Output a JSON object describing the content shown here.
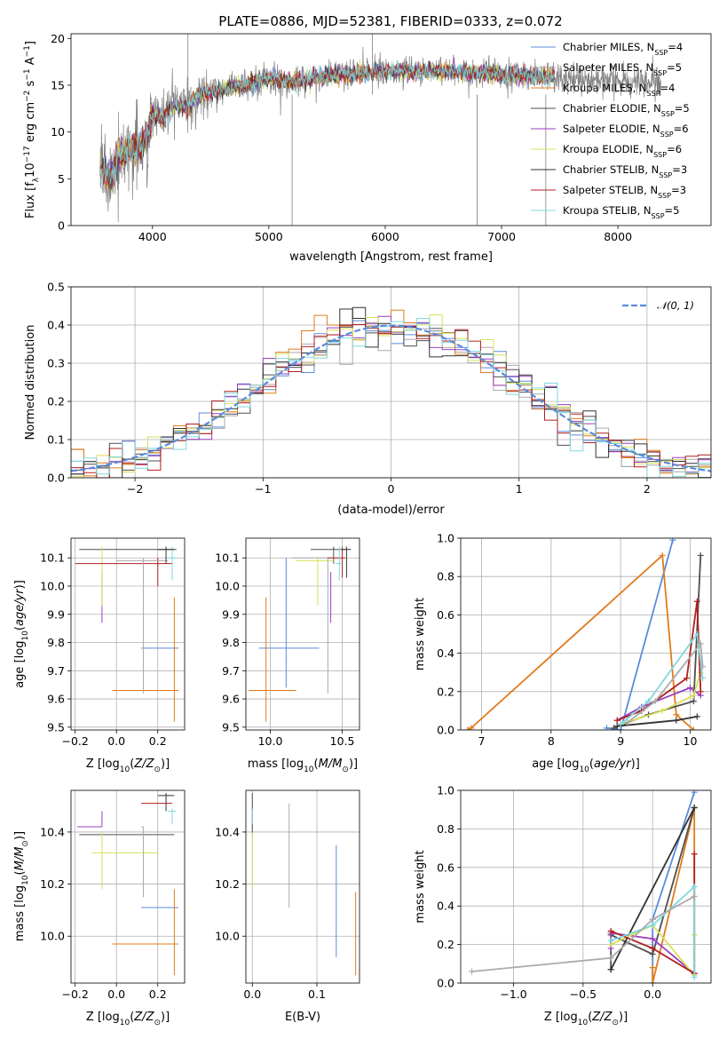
{
  "figure": {
    "title": "PLATE=0886, MJD=52381, FIBERID=0333, z=0.072"
  },
  "models": [
    {
      "name": "Chabrier MILES, N",
      "sub": "SSP",
      "tail": "=4",
      "color": "#5b8bdb"
    },
    {
      "name": "Salpeter MILES, N",
      "sub": "SSP",
      "tail": "=5",
      "color": "#aaaaaa"
    },
    {
      "name": "Kroupa MILES, N",
      "sub": "SSP",
      "tail": "=4",
      "color": "#e07b1c"
    },
    {
      "name": "Chabrier ELODIE, N",
      "sub": "SSP",
      "tail": "=5",
      "color": "#4f4f4f"
    },
    {
      "name": "Salpeter ELODIE, N",
      "sub": "SSP",
      "tail": "=6",
      "color": "#9c3fbf"
    },
    {
      "name": "Kroupa ELODIE, N",
      "sub": "SSP",
      "tail": "=6",
      "color": "#d7e05a"
    },
    {
      "name": "Chabrier STELIB, N",
      "sub": "SSP",
      "tail": "=3",
      "color": "#333333"
    },
    {
      "name": "Salpeter STELIB, N",
      "sub": "SSP",
      "tail": "=3",
      "color": "#b21e1e"
    },
    {
      "name": "Kroupa STELIB, N",
      "sub": "SSP",
      "tail": "=5",
      "color": "#7fd8df"
    }
  ],
  "chart_data": [
    {
      "type": "line",
      "id": "spectrum",
      "xlabel": "wavelength [Angstrom, rest frame]",
      "ylabel_parts": [
        "Flux [f",
        "λ",
        "10",
        "−17",
        " erg cm",
        "−2",
        " s",
        "−1",
        " A",
        "−1",
        "]"
      ],
      "xlim": [
        3300,
        8800
      ],
      "ylim": [
        0,
        20.5
      ],
      "xticks": [
        4000,
        5000,
        6000,
        7000,
        8000
      ],
      "yticks": [
        0,
        5,
        10,
        15,
        20
      ],
      "continuum": [
        [
          3550,
          6.0
        ],
        [
          3650,
          5.0
        ],
        [
          3700,
          7.5
        ],
        [
          3800,
          8.0
        ],
        [
          3900,
          8.5
        ],
        [
          3950,
          9.0
        ],
        [
          4000,
          12.0
        ],
        [
          4100,
          11.5
        ],
        [
          4200,
          13.0
        ],
        [
          4300,
          12.5
        ],
        [
          4400,
          14.0
        ],
        [
          4600,
          14.5
        ],
        [
          4800,
          15.0
        ],
        [
          5000,
          15.8
        ],
        [
          5200,
          15.3
        ],
        [
          5500,
          16.0
        ],
        [
          5800,
          16.3
        ],
        [
          6000,
          16.5
        ],
        [
          6500,
          16.5
        ],
        [
          7000,
          16.2
        ],
        [
          7300,
          16.0
        ],
        [
          7450,
          16.0
        ]
      ],
      "lines_drawn": "noisy spectra of all models"
    },
    {
      "type": "histogram",
      "id": "residuals",
      "xlabel": "(data-model)/error",
      "ylabel": "Normed distribution",
      "xlim": [
        -2.5,
        2.5
      ],
      "ylim": [
        0,
        0.5
      ],
      "xticks": [
        -2,
        -1,
        0,
        1,
        2
      ],
      "yticks": [
        0.0,
        0.1,
        0.2,
        0.3,
        0.4,
        0.5
      ],
      "legend": "𝒩(0, 1)",
      "bin_width": 0.1
    },
    {
      "type": "errorbar",
      "id": "age-vs-z",
      "xlabel": "Z [log10(Z/Z⊙)]",
      "ylabel": "age  [log10(age/yr)]",
      "xlim": [
        -0.22,
        0.33
      ],
      "ylim": [
        9.49,
        10.17
      ],
      "xticks": [
        -0.2,
        0.0,
        0.2
      ],
      "yticks": [
        9.5,
        9.6,
        9.7,
        9.8,
        9.9,
        10.0,
        10.1
      ],
      "points": [
        {
          "m": 0,
          "x": 0.22,
          "xe": [
            0.12,
            0.3
          ],
          "y": 9.78,
          "ye": [
            9.78,
            9.78
          ]
        },
        {
          "m": 2,
          "x": 0.28,
          "xe": [
            -0.02,
            0.3
          ],
          "y": 9.63,
          "ye": [
            9.52,
            9.96
          ]
        },
        {
          "m": 3,
          "x": -0.07,
          "xe": [
            -0.18,
            0.29
          ],
          "y": 10.13,
          "ye": [
            10.13,
            10.13
          ]
        },
        {
          "m": 4,
          "x": -0.07,
          "xe": [
            -0.07,
            -0.07
          ],
          "y": 9.96,
          "ye": [
            9.87,
            10.05
          ]
        },
        {
          "m": 5,
          "x": -0.07,
          "xe": [
            -0.07,
            -0.07
          ],
          "y": 10.02,
          "ye": [
            9.93,
            10.14
          ]
        },
        {
          "m": 7,
          "x": 0.2,
          "xe": [
            -0.2,
            0.27
          ],
          "y": 10.08,
          "ye": [
            10.0,
            10.1
          ]
        },
        {
          "m": 8,
          "x": 0.27,
          "xe": [
            0.25,
            0.29
          ],
          "y": 10.1,
          "ye": [
            10.02,
            10.14
          ]
        },
        {
          "m": 1,
          "x": 0.13,
          "xe": [
            0.0,
            0.25
          ],
          "y": 10.09,
          "ye": [
            9.62,
            10.1
          ]
        },
        {
          "m": 6,
          "x": 0.24,
          "xe": [
            0.2,
            0.28
          ],
          "y": 10.13,
          "ye": [
            10.08,
            10.14
          ]
        }
      ]
    },
    {
      "type": "errorbar",
      "id": "age-vs-mass",
      "xlabel": "mass [log10(M/M⊙)]",
      "ylabel": "",
      "xlim": [
        9.83,
        10.62
      ],
      "ylim": [
        9.49,
        10.17
      ],
      "xticks": [
        10.0,
        10.5
      ],
      "yticks": [
        9.5,
        9.6,
        9.7,
        9.8,
        9.9,
        10.0,
        10.1
      ],
      "points": [
        {
          "m": 0,
          "x": 10.11,
          "xe": [
            9.92,
            10.34
          ],
          "y": 9.78,
          "ye": [
            9.64,
            10.1
          ]
        },
        {
          "m": 2,
          "x": 9.97,
          "xe": [
            9.85,
            10.18
          ],
          "y": 9.63,
          "ye": [
            9.52,
            9.96
          ]
        },
        {
          "m": 3,
          "x": 10.44,
          "xe": [
            10.28,
            10.52
          ],
          "y": 10.13,
          "ye": [
            10.08,
            10.14
          ]
        },
        {
          "m": 4,
          "x": 10.42,
          "xe": [
            10.42,
            10.42
          ],
          "y": 9.96,
          "ye": [
            9.87,
            10.05
          ]
        },
        {
          "m": 5,
          "x": 10.33,
          "xe": [
            10.18,
            10.44
          ],
          "y": 10.09,
          "ye": [
            9.93,
            10.1
          ]
        },
        {
          "m": 1,
          "x": 10.4,
          "xe": [
            10.15,
            10.42
          ],
          "y": 10.1,
          "ye": [
            9.62,
            10.1
          ]
        },
        {
          "m": 7,
          "x": 10.5,
          "xe": [
            10.4,
            10.52
          ],
          "y": 10.1,
          "ye": [
            10.03,
            10.14
          ]
        },
        {
          "m": 8,
          "x": 10.48,
          "xe": [
            10.45,
            10.5
          ],
          "y": 10.08,
          "ye": [
            10.02,
            10.14
          ]
        },
        {
          "m": 6,
          "x": 10.53,
          "xe": [
            10.5,
            10.56
          ],
          "y": 10.13,
          "ye": [
            10.03,
            10.14
          ]
        }
      ]
    },
    {
      "type": "line",
      "id": "mass-weight-vs-age",
      "xlabel": "age  [log10(age/yr)]",
      "ylabel": "mass weight",
      "xlim": [
        6.7,
        10.3
      ],
      "ylim": [
        0,
        1.0
      ],
      "xticks": [
        7,
        8,
        9,
        10
      ],
      "yticks": [
        0.0,
        0.2,
        0.4,
        0.6,
        0.8,
        1.0
      ],
      "series": [
        {
          "m": 0,
          "x": [
            8.8,
            9.0,
            9.75
          ],
          "y": [
            0.01,
            0.0,
            0.99
          ]
        },
        {
          "m": 2,
          "x": [
            6.8,
            6.85,
            9.6,
            9.8,
            10.05
          ],
          "y": [
            0.0,
            0.01,
            0.91,
            0.08,
            0.0
          ]
        },
        {
          "m": 3,
          "x": [
            8.9,
            9.4,
            10.05,
            10.15
          ],
          "y": [
            0.01,
            0.08,
            0.15,
            0.91
          ]
        },
        {
          "m": 4,
          "x": [
            8.95,
            9.3,
            10.0,
            10.15
          ],
          "y": [
            0.05,
            0.12,
            0.22,
            0.18
          ]
        },
        {
          "m": 5,
          "x": [
            9.0,
            9.6,
            10.05,
            10.15
          ],
          "y": [
            0.03,
            0.1,
            0.18,
            0.3
          ]
        },
        {
          "m": 6,
          "x": [
            8.95,
            9.8,
            10.1
          ],
          "y": [
            0.02,
            0.05,
            0.07
          ]
        },
        {
          "m": 7,
          "x": [
            8.95,
            9.3,
            9.95,
            10.1,
            10.15
          ],
          "y": [
            0.05,
            0.1,
            0.27,
            0.67,
            0.2
          ]
        },
        {
          "m": 8,
          "x": [
            9.0,
            9.4,
            10.1,
            10.18
          ],
          "y": [
            0.03,
            0.15,
            0.5,
            0.27
          ]
        },
        {
          "m": 1,
          "x": [
            9.1,
            9.5,
            10.15,
            10.18
          ],
          "y": [
            0.04,
            0.15,
            0.45,
            0.33
          ]
        }
      ]
    },
    {
      "type": "errorbar",
      "id": "mass-vs-z",
      "xlabel": "Z [log10(Z/Z⊙)]",
      "ylabel": "mass [log10(M/M⊙)]",
      "xlim": [
        -0.22,
        0.33
      ],
      "ylim": [
        9.82,
        10.56
      ],
      "xticks": [
        -0.2,
        0.0,
        0.2
      ],
      "yticks": [
        10.0,
        10.2,
        10.4
      ],
      "points": [
        {
          "m": 0,
          "x": 0.22,
          "xe": [
            0.12,
            0.3
          ],
          "y": 10.11,
          "ye": [
            10.11,
            10.11
          ]
        },
        {
          "m": 2,
          "x": 0.28,
          "xe": [
            -0.02,
            0.3
          ],
          "y": 9.97,
          "ye": [
            9.85,
            10.18
          ]
        },
        {
          "m": 3,
          "x": -0.07,
          "xe": [
            -0.18,
            0.28
          ],
          "y": 10.39,
          "ye": [
            10.39,
            10.39
          ]
        },
        {
          "m": 4,
          "x": -0.07,
          "xe": [
            -0.19,
            -0.07
          ],
          "y": 10.42,
          "ye": [
            10.42,
            10.48
          ]
        },
        {
          "m": 5,
          "x": -0.07,
          "xe": [
            -0.12,
            0.2
          ],
          "y": 10.32,
          "ye": [
            10.18,
            10.4
          ]
        },
        {
          "m": 1,
          "x": 0.13,
          "xe": [
            0.12,
            0.13
          ],
          "y": 10.42,
          "ye": [
            10.15,
            10.42
          ]
        },
        {
          "m": 7,
          "x": 0.2,
          "xe": [
            0.12,
            0.27
          ],
          "y": 10.51,
          "ye": [
            10.51,
            10.51
          ]
        },
        {
          "m": 8,
          "x": 0.27,
          "xe": [
            0.25,
            0.29
          ],
          "y": 10.48,
          "ye": [
            10.43,
            10.49
          ]
        },
        {
          "m": 6,
          "x": 0.24,
          "xe": [
            0.2,
            0.28
          ],
          "y": 10.54,
          "ye": [
            10.48,
            10.55
          ]
        }
      ]
    },
    {
      "type": "errorbar",
      "id": "mass-vs-ebv",
      "xlabel": "E(B-V)",
      "ylabel": "",
      "xlim": [
        -0.01,
        0.166
      ],
      "ylim": [
        9.82,
        10.56
      ],
      "xticks": [
        0.0,
        0.1
      ],
      "yticks": [
        10.0,
        10.2,
        10.4
      ],
      "points": [
        {
          "m": 0,
          "x": 0.13,
          "y": 10.13,
          "ye": [
            9.92,
            10.35
          ]
        },
        {
          "m": 2,
          "x": 0.16,
          "y": 10.0,
          "ye": [
            9.85,
            10.17
          ]
        },
        {
          "m": 1,
          "x": 0.057,
          "y": 10.3,
          "ye": [
            10.11,
            10.51
          ]
        },
        {
          "m": 3,
          "x": 0.0,
          "y": 10.45,
          "ye": [
            10.39,
            10.55
          ]
        },
        {
          "m": 5,
          "x": 0.0,
          "y": 10.3,
          "ye": [
            10.18,
            10.4
          ]
        },
        {
          "m": 8,
          "x": 0.0,
          "y": 10.46,
          "ye": [
            10.43,
            10.49
          ]
        }
      ]
    },
    {
      "type": "line",
      "id": "mass-weight-vs-z",
      "xlabel": "Z [log10(Z/Z⊙)]",
      "ylabel": "mass weight",
      "xlim": [
        -1.38,
        0.42
      ],
      "ylim": [
        0,
        1.0
      ],
      "xticks": [
        -1.0,
        -0.5,
        0.0
      ],
      "yticks": [
        0.0,
        0.2,
        0.4,
        0.6,
        0.8,
        1.0
      ],
      "series": [
        {
          "m": 0,
          "x": [
            0.0,
            0.0,
            0.3
          ],
          "y": [
            0.0,
            0.33,
            0.99
          ]
        },
        {
          "m": 2,
          "x": [
            0.0,
            0.0,
            0.3,
            0.3
          ],
          "y": [
            0.08,
            0.0,
            0.91,
            0.05
          ]
        },
        {
          "m": 3,
          "x": [
            -0.3,
            -0.3,
            0.0,
            0.3
          ],
          "y": [
            0.07,
            0.25,
            0.15,
            0.91
          ]
        },
        {
          "m": 6,
          "x": [
            -0.3,
            0.3
          ],
          "y": [
            0.07,
            0.91
          ]
        },
        {
          "m": 4,
          "x": [
            -0.3,
            -0.3,
            0.0,
            0.3
          ],
          "y": [
            0.18,
            0.26,
            0.23,
            0.05
          ]
        },
        {
          "m": 5,
          "x": [
            -0.3,
            0.0,
            0.3,
            0.3
          ],
          "y": [
            0.2,
            0.3,
            0.04,
            0.25
          ]
        },
        {
          "m": 7,
          "x": [
            -0.3,
            0.0,
            0.3,
            0.3
          ],
          "y": [
            0.27,
            0.18,
            0.05,
            0.67
          ]
        },
        {
          "m": 8,
          "x": [
            -0.3,
            0.0,
            0.3,
            0.3
          ],
          "y": [
            0.22,
            0.3,
            0.5,
            0.03
          ]
        },
        {
          "m": 1,
          "x": [
            -1.3,
            -0.3,
            0.0,
            0.3
          ],
          "y": [
            0.06,
            0.13,
            0.33,
            0.45
          ]
        }
      ]
    }
  ]
}
